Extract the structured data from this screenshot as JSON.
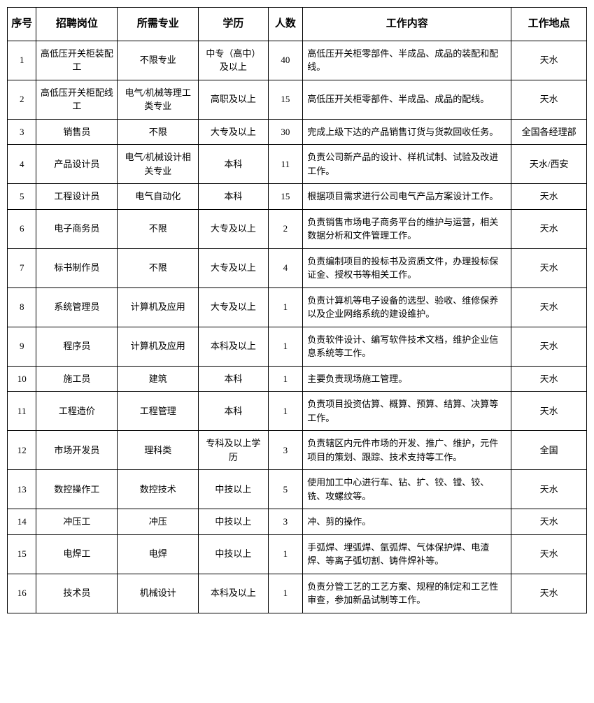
{
  "table": {
    "columns": [
      {
        "key": "index",
        "label": "序号",
        "class": "col-index"
      },
      {
        "key": "position",
        "label": "招聘岗位",
        "class": "col-position"
      },
      {
        "key": "major",
        "label": "所需专业",
        "class": "col-major"
      },
      {
        "key": "education",
        "label": "学历",
        "class": "col-education"
      },
      {
        "key": "count",
        "label": "人数",
        "class": "col-count"
      },
      {
        "key": "content",
        "label": "工作内容",
        "class": "col-content"
      },
      {
        "key": "location",
        "label": "工作地点",
        "class": "col-location"
      }
    ],
    "rows": [
      {
        "index": "1",
        "position": "高低压开关柜装配工",
        "major": "不限专业",
        "education": "中专（高中）及以上",
        "count": "40",
        "content": "高低压开关柜零部件、半成品、成品的装配和配线。",
        "location": "天水"
      },
      {
        "index": "2",
        "position": "高低压开关柜配线工",
        "major": "电气/机械等理工类专业",
        "education": "高职及以上",
        "count": "15",
        "content": "高低压开关柜零部件、半成品、成品的配线。",
        "location": "天水"
      },
      {
        "index": "3",
        "position": "销售员",
        "major": "不限",
        "education": "大专及以上",
        "count": "30",
        "content": "完成上级下达的产品销售订货与货款回收任务。",
        "location": "全国各经理部"
      },
      {
        "index": "4",
        "position": "产品设计员",
        "major": "电气/机械设计相关专业",
        "education": "本科",
        "count": "11",
        "content": "负责公司新产品的设计、样机试制、试验及改进工作。",
        "location": "天水/西安"
      },
      {
        "index": "5",
        "position": "工程设计员",
        "major": "电气自动化",
        "education": "本科",
        "count": "15",
        "content": "根据项目需求进行公司电气产品方案设计工作。",
        "location": "天水"
      },
      {
        "index": "6",
        "position": "电子商务员",
        "major": "不限",
        "education": "大专及以上",
        "count": "2",
        "content": "负责销售市场电子商务平台的维护与运营，相关数据分析和文件管理工作。",
        "location": "天水"
      },
      {
        "index": "7",
        "position": "标书制作员",
        "major": "不限",
        "education": "大专及以上",
        "count": "4",
        "content": "负责编制项目的投标书及资质文件，办理投标保证金、授权书等相关工作。",
        "location": "天水"
      },
      {
        "index": "8",
        "position": "系统管理员",
        "major": "计算机及应用",
        "education": "大专及以上",
        "count": "1",
        "content": "负责计算机等电子设备的选型、验收、维修保养以及企业网络系统的建设维护。",
        "location": "天水"
      },
      {
        "index": "9",
        "position": "程序员",
        "major": "计算机及应用",
        "education": "本科及以上",
        "count": "1",
        "content": "负责软件设计、编写软件技术文档，维护企业信息系统等工作。",
        "location": "天水"
      },
      {
        "index": "10",
        "position": "施工员",
        "major": "建筑",
        "education": "本科",
        "count": "1",
        "content": "主要负责现场施工管理。",
        "location": "天水"
      },
      {
        "index": "11",
        "position": "工程造价",
        "major": "工程管理",
        "education": "本科",
        "count": "1",
        "content": "负责项目投资估算、概算、预算、结算、决算等工作。",
        "location": "天水"
      },
      {
        "index": "12",
        "position": "市场开发员",
        "major": "理科类",
        "education": "专科及以上学历",
        "count": "3",
        "content": "负责辖区内元件市场的开发、推广、维护，元件项目的策划、跟踪、技术支持等工作。",
        "location": "全国"
      },
      {
        "index": "13",
        "position": "数控操作工",
        "major": "数控技术",
        "education": "中技以上",
        "count": "5",
        "content": "使用加工中心进行车、钻、扩、铰、镗、铰、铣、攻螺纹等。",
        "location": "天水"
      },
      {
        "index": "14",
        "position": "冲压工",
        "major": "冲压",
        "education": "中技以上",
        "count": "3",
        "content": "冲、剪的操作。",
        "location": "天水"
      },
      {
        "index": "15",
        "position": "电焊工",
        "major": "电焊",
        "education": "中技以上",
        "count": "1",
        "content": "手弧焊、埋弧焊、氩弧焊、气体保护焊、电渣焊、等离子弧切割、铸件焊补等。",
        "location": "天水"
      },
      {
        "index": "16",
        "position": "技术员",
        "major": "机械设计",
        "education": "本科及以上",
        "count": "1",
        "content": "负责分管工艺的工艺方案、规程的制定和工艺性审查，参加新品试制等工作。",
        "location": "天水"
      }
    ],
    "styling": {
      "border_color": "#000000",
      "background_color": "#ffffff",
      "header_fontsize": 15,
      "cell_fontsize": 13,
      "font_family": "SimSun",
      "header_font_weight": "bold",
      "line_height": 1.5
    }
  }
}
